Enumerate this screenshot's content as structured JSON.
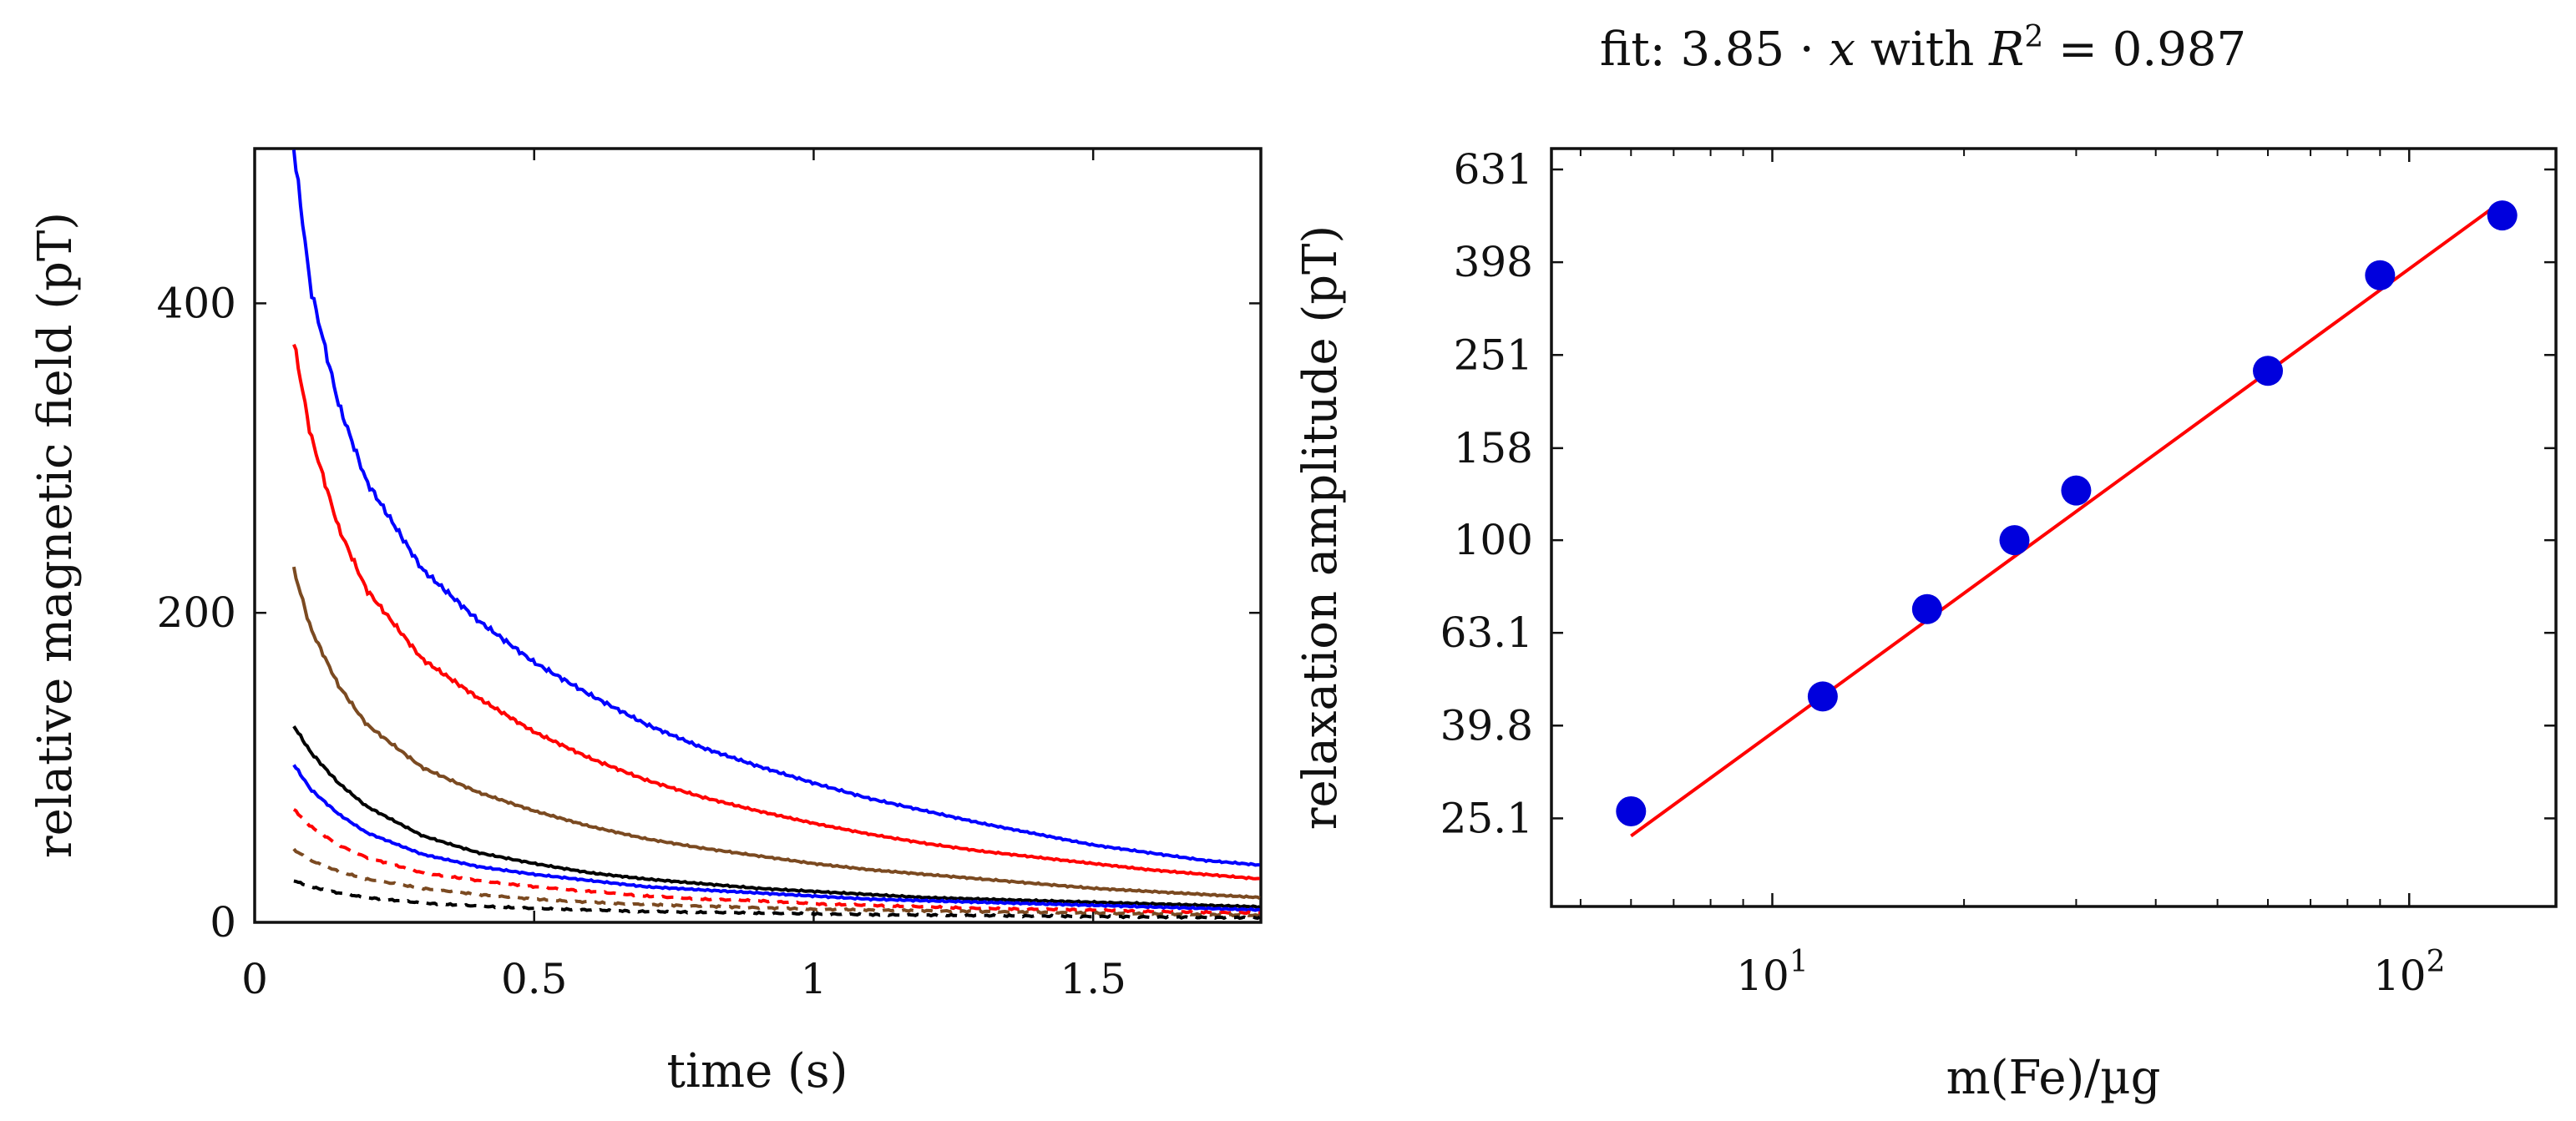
{
  "chart_data": [
    {
      "type": "line",
      "title": "",
      "xlabel": "time (s)",
      "ylabel": "relative magnetic field (pT)",
      "xlim": [
        0,
        1.8
      ],
      "ylim": [
        0,
        500
      ],
      "xticks": [
        0,
        0.5,
        1,
        1.5
      ],
      "xtick_labels": [
        "0",
        "0.5",
        "1",
        "1.5"
      ],
      "yticks": [
        0,
        200,
        400
      ],
      "ytick_labels": [
        "0",
        "200",
        "400"
      ],
      "x_start": 0.07,
      "series": [
        {
          "name": "blue solid high",
          "color": "#0000ff",
          "dash": "solid",
          "values": [
            {
              "x": 0.07,
              "y": 500
            },
            {
              "x": 0.1,
              "y": 410
            },
            {
              "x": 0.15,
              "y": 335
            },
            {
              "x": 0.2,
              "y": 285
            },
            {
              "x": 0.3,
              "y": 228
            },
            {
              "x": 0.4,
              "y": 195
            },
            {
              "x": 0.5,
              "y": 168
            },
            {
              "x": 0.6,
              "y": 147
            },
            {
              "x": 0.7,
              "y": 128
            },
            {
              "x": 0.8,
              "y": 113
            },
            {
              "x": 0.9,
              "y": 101
            },
            {
              "x": 1.0,
              "y": 90
            },
            {
              "x": 1.1,
              "y": 80
            },
            {
              "x": 1.2,
              "y": 72
            },
            {
              "x": 1.3,
              "y": 64
            },
            {
              "x": 1.4,
              "y": 57
            },
            {
              "x": 1.5,
              "y": 50
            },
            {
              "x": 1.6,
              "y": 45
            },
            {
              "x": 1.7,
              "y": 40
            },
            {
              "x": 1.8,
              "y": 37
            }
          ]
        },
        {
          "name": "red solid high",
          "color": "#ff0000",
          "dash": "solid",
          "values": [
            {
              "x": 0.07,
              "y": 375
            },
            {
              "x": 0.1,
              "y": 315
            },
            {
              "x": 0.15,
              "y": 255
            },
            {
              "x": 0.2,
              "y": 215
            },
            {
              "x": 0.3,
              "y": 170
            },
            {
              "x": 0.4,
              "y": 145
            },
            {
              "x": 0.5,
              "y": 123
            },
            {
              "x": 0.6,
              "y": 106
            },
            {
              "x": 0.7,
              "y": 92
            },
            {
              "x": 0.8,
              "y": 81
            },
            {
              "x": 0.9,
              "y": 72
            },
            {
              "x": 1.0,
              "y": 64
            },
            {
              "x": 1.1,
              "y": 57
            },
            {
              "x": 1.2,
              "y": 51
            },
            {
              "x": 1.3,
              "y": 46
            },
            {
              "x": 1.4,
              "y": 42
            },
            {
              "x": 1.5,
              "y": 38
            },
            {
              "x": 1.6,
              "y": 34
            },
            {
              "x": 1.7,
              "y": 31
            },
            {
              "x": 1.8,
              "y": 28
            }
          ]
        },
        {
          "name": "brown solid high",
          "color": "#7b4a21",
          "dash": "solid",
          "values": [
            {
              "x": 0.07,
              "y": 228
            },
            {
              "x": 0.1,
              "y": 190
            },
            {
              "x": 0.15,
              "y": 153
            },
            {
              "x": 0.2,
              "y": 128
            },
            {
              "x": 0.3,
              "y": 100
            },
            {
              "x": 0.4,
              "y": 84
            },
            {
              "x": 0.5,
              "y": 72
            },
            {
              "x": 0.6,
              "y": 62
            },
            {
              "x": 0.7,
              "y": 54
            },
            {
              "x": 0.8,
              "y": 48
            },
            {
              "x": 0.9,
              "y": 43
            },
            {
              "x": 1.0,
              "y": 38
            },
            {
              "x": 1.1,
              "y": 34
            },
            {
              "x": 1.2,
              "y": 31
            },
            {
              "x": 1.3,
              "y": 28
            },
            {
              "x": 1.4,
              "y": 25
            },
            {
              "x": 1.5,
              "y": 22
            },
            {
              "x": 1.6,
              "y": 20
            },
            {
              "x": 1.7,
              "y": 18
            },
            {
              "x": 1.8,
              "y": 16
            }
          ]
        },
        {
          "name": "black solid",
          "color": "#000000",
          "dash": "solid",
          "values": [
            {
              "x": 0.07,
              "y": 127
            },
            {
              "x": 0.1,
              "y": 110
            },
            {
              "x": 0.15,
              "y": 90
            },
            {
              "x": 0.2,
              "y": 75
            },
            {
              "x": 0.3,
              "y": 56
            },
            {
              "x": 0.4,
              "y": 45
            },
            {
              "x": 0.5,
              "y": 38
            },
            {
              "x": 0.6,
              "y": 32
            },
            {
              "x": 0.7,
              "y": 28
            },
            {
              "x": 0.8,
              "y": 25
            },
            {
              "x": 0.9,
              "y": 22
            },
            {
              "x": 1.0,
              "y": 20
            },
            {
              "x": 1.1,
              "y": 18
            },
            {
              "x": 1.2,
              "y": 16
            },
            {
              "x": 1.3,
              "y": 15
            },
            {
              "x": 1.4,
              "y": 14
            },
            {
              "x": 1.5,
              "y": 13
            },
            {
              "x": 1.6,
              "y": 12
            },
            {
              "x": 1.7,
              "y": 11
            },
            {
              "x": 1.8,
              "y": 10
            }
          ]
        },
        {
          "name": "blue solid low",
          "color": "#0000ff",
          "dash": "solid",
          "values": [
            {
              "x": 0.07,
              "y": 102
            },
            {
              "x": 0.1,
              "y": 86
            },
            {
              "x": 0.15,
              "y": 70
            },
            {
              "x": 0.2,
              "y": 58
            },
            {
              "x": 0.3,
              "y": 44
            },
            {
              "x": 0.4,
              "y": 36
            },
            {
              "x": 0.5,
              "y": 31
            },
            {
              "x": 0.6,
              "y": 27
            },
            {
              "x": 0.7,
              "y": 23
            },
            {
              "x": 0.8,
              "y": 21
            },
            {
              "x": 0.9,
              "y": 19
            },
            {
              "x": 1.0,
              "y": 17
            },
            {
              "x": 1.1,
              "y": 15
            },
            {
              "x": 1.2,
              "y": 14
            },
            {
              "x": 1.3,
              "y": 13
            },
            {
              "x": 1.4,
              "y": 12
            },
            {
              "x": 1.5,
              "y": 11
            },
            {
              "x": 1.6,
              "y": 10
            },
            {
              "x": 1.7,
              "y": 9
            },
            {
              "x": 1.8,
              "y": 8
            }
          ]
        },
        {
          "name": "red dashed",
          "color": "#ff0000",
          "dash": "dashed",
          "values": [
            {
              "x": 0.07,
              "y": 73
            },
            {
              "x": 0.1,
              "y": 62
            },
            {
              "x": 0.15,
              "y": 50
            },
            {
              "x": 0.2,
              "y": 42
            },
            {
              "x": 0.3,
              "y": 32
            },
            {
              "x": 0.4,
              "y": 27
            },
            {
              "x": 0.5,
              "y": 23
            },
            {
              "x": 0.6,
              "y": 20
            },
            {
              "x": 0.7,
              "y": 17
            },
            {
              "x": 0.8,
              "y": 15
            },
            {
              "x": 0.9,
              "y": 14
            },
            {
              "x": 1.0,
              "y": 12
            },
            {
              "x": 1.1,
              "y": 11
            },
            {
              "x": 1.2,
              "y": 10
            },
            {
              "x": 1.3,
              "y": 9
            },
            {
              "x": 1.4,
              "y": 8.5
            },
            {
              "x": 1.5,
              "y": 8
            },
            {
              "x": 1.6,
              "y": 7
            },
            {
              "x": 1.7,
              "y": 6.5
            },
            {
              "x": 1.8,
              "y": 6
            }
          ]
        },
        {
          "name": "brown dashed",
          "color": "#7b4a21",
          "dash": "dashed",
          "values": [
            {
              "x": 0.07,
              "y": 47
            },
            {
              "x": 0.1,
              "y": 40
            },
            {
              "x": 0.15,
              "y": 33
            },
            {
              "x": 0.2,
              "y": 28
            },
            {
              "x": 0.3,
              "y": 22
            },
            {
              "x": 0.4,
              "y": 18
            },
            {
              "x": 0.5,
              "y": 15
            },
            {
              "x": 0.6,
              "y": 13
            },
            {
              "x": 0.7,
              "y": 11.5
            },
            {
              "x": 0.8,
              "y": 10.5
            },
            {
              "x": 0.9,
              "y": 9.5
            },
            {
              "x": 1.0,
              "y": 8.5
            },
            {
              "x": 1.1,
              "y": 8
            },
            {
              "x": 1.2,
              "y": 7.5
            },
            {
              "x": 1.3,
              "y": 7
            },
            {
              "x": 1.4,
              "y": 6.5
            },
            {
              "x": 1.5,
              "y": 6
            },
            {
              "x": 1.6,
              "y": 5.5
            },
            {
              "x": 1.7,
              "y": 5
            },
            {
              "x": 1.8,
              "y": 4.5
            }
          ]
        },
        {
          "name": "black dashed",
          "color": "#000000",
          "dash": "dashed",
          "values": [
            {
              "x": 0.07,
              "y": 27
            },
            {
              "x": 0.1,
              "y": 23
            },
            {
              "x": 0.15,
              "y": 19
            },
            {
              "x": 0.2,
              "y": 16
            },
            {
              "x": 0.3,
              "y": 12.5
            },
            {
              "x": 0.4,
              "y": 10.5
            },
            {
              "x": 0.5,
              "y": 9
            },
            {
              "x": 0.6,
              "y": 8
            },
            {
              "x": 0.7,
              "y": 7
            },
            {
              "x": 0.8,
              "y": 6.5
            },
            {
              "x": 0.9,
              "y": 6
            },
            {
              "x": 1.0,
              "y": 5.5
            },
            {
              "x": 1.1,
              "y": 5
            },
            {
              "x": 1.2,
              "y": 4.7
            },
            {
              "x": 1.3,
              "y": 4.4
            },
            {
              "x": 1.4,
              "y": 4.1
            },
            {
              "x": 1.5,
              "y": 3.8
            },
            {
              "x": 1.6,
              "y": 3.5
            },
            {
              "x": 1.7,
              "y": 3.2
            },
            {
              "x": 1.8,
              "y": 3
            }
          ]
        }
      ]
    },
    {
      "type": "scatter",
      "title": "fit: 3.85 · x with R² = 0.987",
      "title_parts": {
        "prefix": "fit: 3.85 · ",
        "var": "x",
        "mid": " with ",
        "rvar": "R",
        "sup": "2",
        "suffix": " = 0.987"
      },
      "xlabel": "m(Fe)/µg",
      "ylabel": "relaxation amplitude (pT)",
      "xscale": "log",
      "yscale": "log",
      "xlim": [
        4.5,
        170
      ],
      "ylim": [
        16.2,
        700
      ],
      "xticks": [
        10,
        100
      ],
      "xtick_labels": [
        {
          "base": "10",
          "exp": "1"
        },
        {
          "base": "10",
          "exp": "2"
        }
      ],
      "yticks": [
        25.1,
        39.8,
        63.1,
        100,
        158,
        251,
        398,
        631
      ],
      "ytick_labels": [
        "25.1",
        "39.8",
        "63.1",
        "100",
        "158",
        "251",
        "398",
        "631"
      ],
      "points_color": "#0000dd",
      "fit_color": "#ff0000",
      "points": [
        {
          "x": 6,
          "y": 26
        },
        {
          "x": 12,
          "y": 46
        },
        {
          "x": 17.5,
          "y": 71
        },
        {
          "x": 24,
          "y": 100
        },
        {
          "x": 30,
          "y": 128
        },
        {
          "x": 60,
          "y": 232
        },
        {
          "x": 90,
          "y": 373
        },
        {
          "x": 140,
          "y": 502
        }
      ],
      "fit_line": [
        {
          "x": 6,
          "y": 23
        },
        {
          "x": 135,
          "y": 520
        }
      ]
    }
  ]
}
